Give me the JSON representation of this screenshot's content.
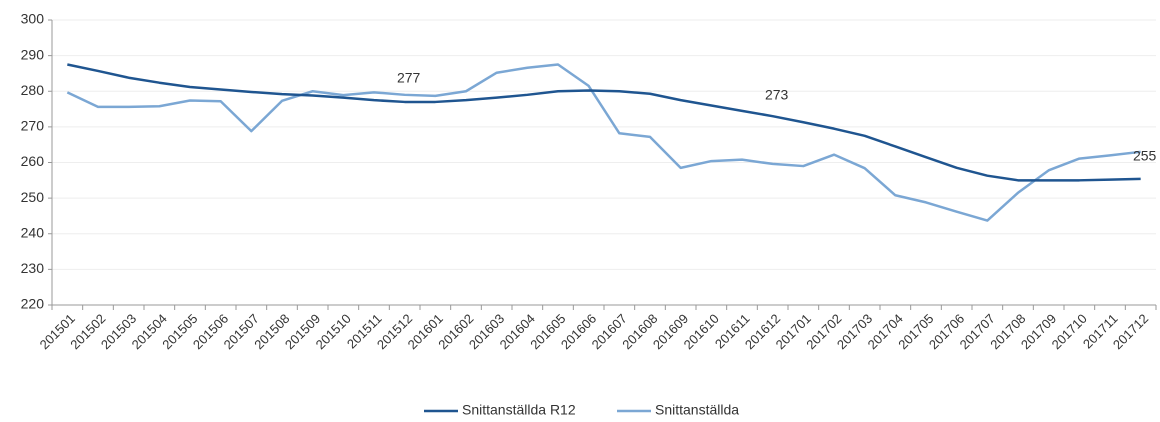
{
  "chart_data": {
    "type": "line",
    "categories": [
      "201501",
      "201502",
      "201503",
      "201504",
      "201505",
      "201506",
      "201507",
      "201508",
      "201509",
      "201510",
      "201511",
      "201512",
      "201601",
      "201602",
      "201603",
      "201604",
      "201605",
      "201606",
      "201607",
      "201608",
      "201609",
      "201610",
      "201611",
      "201612",
      "201701",
      "201702",
      "201703",
      "201704",
      "201705",
      "201706",
      "201707",
      "201708",
      "201709",
      "201710",
      "201711",
      "201712"
    ],
    "series": [
      {
        "name": "Snittanställda R12",
        "color": "#1f5590",
        "values": [
          287.5,
          285.7,
          283.8,
          282.4,
          281.2,
          280.5,
          279.8,
          279.2,
          278.8,
          278.2,
          277.5,
          277.0,
          277.0,
          277.5,
          278.2,
          279.0,
          280.0,
          280.2,
          280.0,
          279.3,
          277.5,
          276.0,
          274.5,
          273.0,
          271.3,
          269.5,
          267.5,
          264.5,
          261.5,
          258.5,
          256.3,
          255.0,
          255.0,
          255.0,
          255.2,
          255.4
        ]
      },
      {
        "name": "Snittanställda",
        "color": "#7ba7d4",
        "values": [
          279.7,
          275.6,
          275.6,
          275.8,
          277.4,
          277.2,
          268.8,
          277.3,
          280.0,
          278.9,
          279.7,
          279.0,
          278.7,
          280.0,
          285.2,
          286.6,
          287.5,
          281.5,
          268.2,
          267.2,
          258.5,
          260.4,
          260.8,
          259.6,
          259.0,
          262.2,
          258.4,
          250.8,
          248.8,
          246.2,
          243.7,
          251.5,
          257.8,
          261.1,
          262.0,
          263.0
        ]
      }
    ],
    "annotations": [
      "277",
      "273",
      "255"
    ],
    "ylim": [
      220,
      300
    ],
    "yticks": [
      220,
      230,
      240,
      250,
      260,
      270,
      280,
      290,
      300
    ],
    "grid": true,
    "legend": "bottom"
  }
}
